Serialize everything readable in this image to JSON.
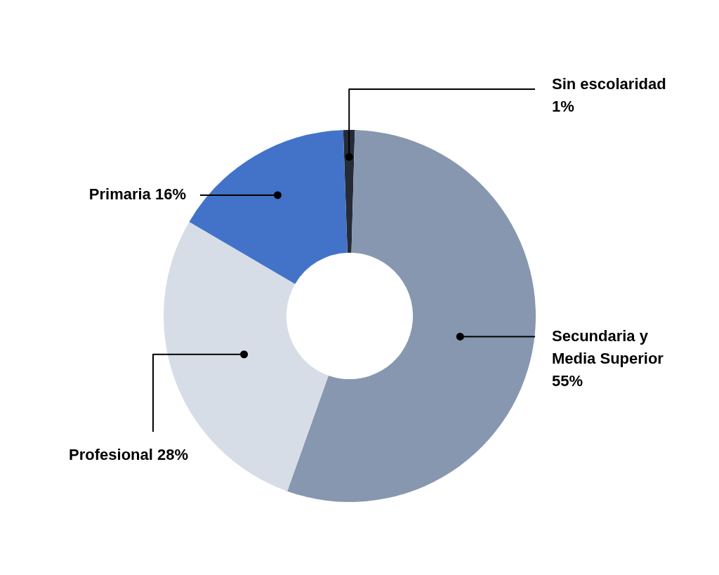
{
  "chart_data": {
    "type": "donut",
    "categories": [
      "Sin escolaridad",
      "Secundaria y Media Superior",
      "Profesional",
      "Primaria"
    ],
    "values": [
      1,
      55,
      28,
      16
    ],
    "value_labels": [
      "1%",
      "55%",
      "28%",
      "16%"
    ],
    "colors": [
      "#262b38",
      "#8797b0",
      "#d7dde7",
      "#4373c8"
    ]
  }
}
